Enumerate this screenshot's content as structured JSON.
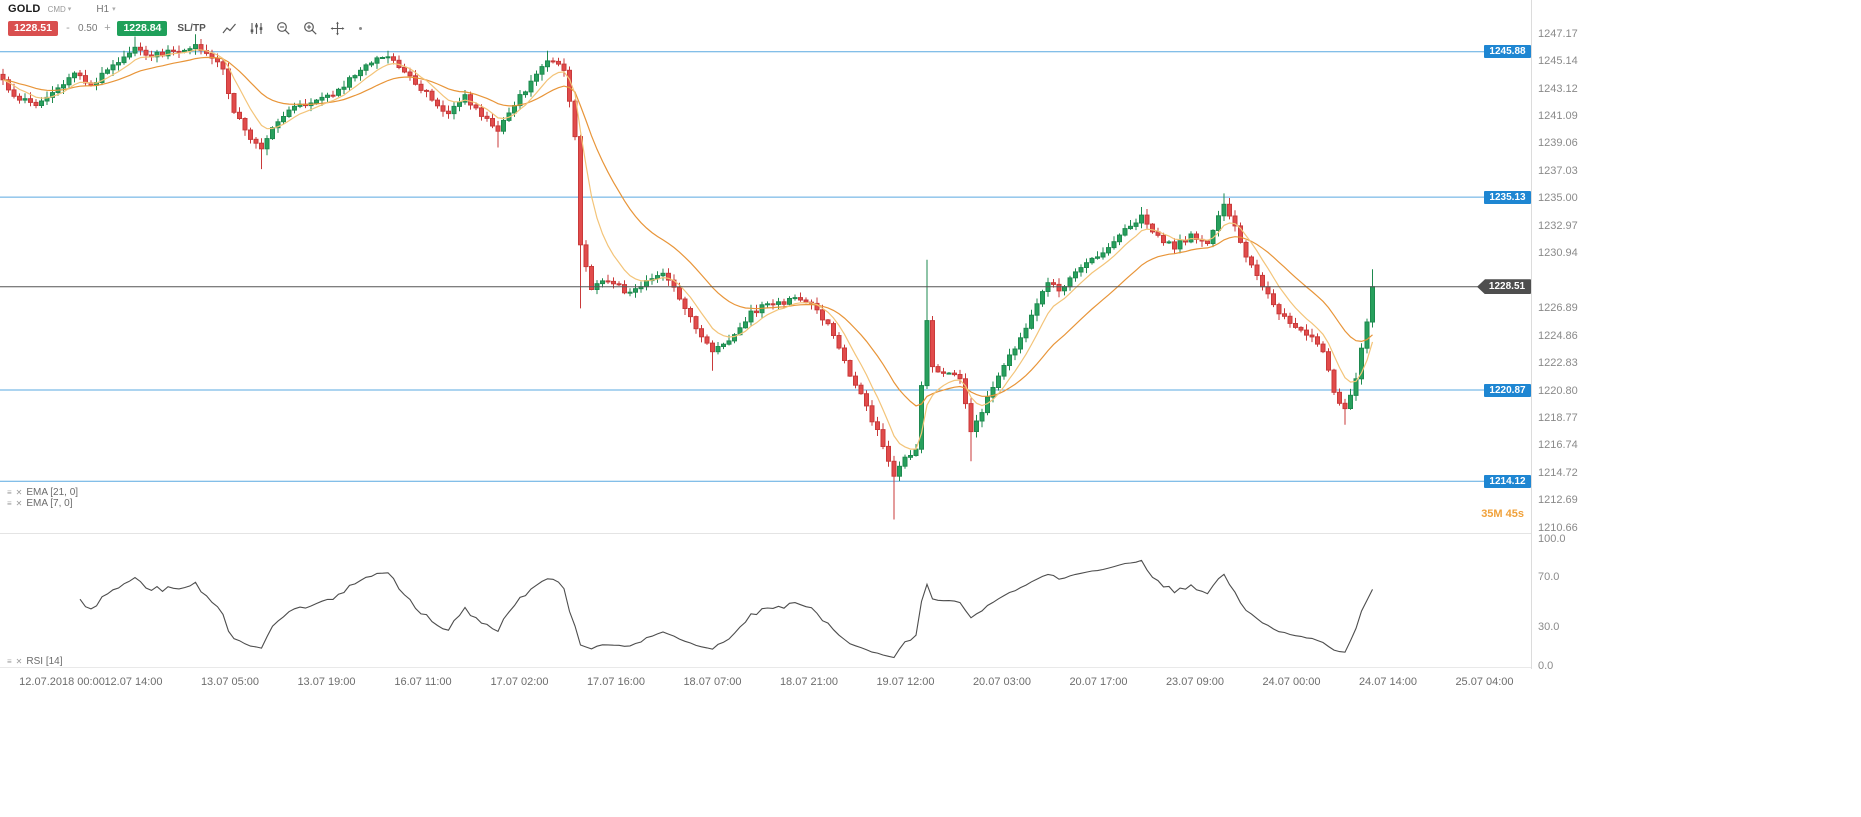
{
  "header": {
    "symbol": "GOLD",
    "instrument_type": "CMD",
    "timeframe": "H1"
  },
  "trade_bar": {
    "sell_price": "1228.51",
    "volume": "0.50",
    "minus": "-",
    "plus": "+",
    "buy_price": "1228.84",
    "sltp_label": "SL/TP"
  },
  "legend": {
    "ema_slow": "EMA [21, 0]",
    "ema_fast": "EMA [7, 0]",
    "rsi": "RSI [14]"
  },
  "countdown": "35M 45s",
  "icons": {
    "caret": "▾",
    "menu": "≡",
    "close": "✕",
    "dot": "·"
  },
  "colors": {
    "up": "#27a05d",
    "up_stroke": "#1e8a4f",
    "down": "#e14b4b",
    "down_stroke": "#c93a3a",
    "ema_slow": "#e89539",
    "ema_fast": "#f3c479",
    "level_line": "#5aa9e0",
    "level_tag_bg": "#1e86d2",
    "current_line": "#555555",
    "current_tag_bg": "#4e4e4e",
    "rsi_line": "#4d4d4d",
    "countdown": "#f0a13a",
    "sell_bg": "#d94f4f",
    "buy_bg": "#1fa05a"
  },
  "chart_data": {
    "type": "candlestick",
    "symbol": "GOLD",
    "timeframe": "H1",
    "overlays": [
      "EMA(21)",
      "EMA(7)"
    ],
    "subpanel": "RSI(14)",
    "ylim": [
      1210.3,
      1249.7
    ],
    "rsi_ylim": [
      0,
      100
    ],
    "grid": false,
    "candle_count": 250,
    "noise_seed": 7,
    "noise_amp": 0.5,
    "current_price": 1228.51,
    "levels": [
      {
        "label": "1245.88",
        "price": 1245.88,
        "type": "level"
      },
      {
        "label": "1235.13",
        "price": 1235.13,
        "type": "level"
      },
      {
        "label": "1220.87",
        "price": 1220.87,
        "type": "level"
      },
      {
        "label": "1214.12",
        "price": 1214.12,
        "type": "level"
      },
      {
        "label": "1228.51",
        "price": 1228.51,
        "type": "current"
      }
    ],
    "y_tick_labels": [
      "1247.17",
      "1245.14",
      "1243.12",
      "1241.09",
      "1239.06",
      "1237.03",
      "1235.00",
      "1232.97",
      "1230.94",
      "1226.89",
      "1224.86",
      "1222.83",
      "1220.80",
      "1218.77",
      "1216.74",
      "1214.72",
      "1212.69",
      "1210.66"
    ],
    "rsi_tick_labels": [
      "100.0",
      "70.0",
      "30.0",
      "0.0"
    ],
    "x_tick_labels": [
      "12.07.2018 00:00",
      "12.07 14:00",
      "13.07 05:00",
      "13.07 19:00",
      "16.07 11:00",
      "17.07 02:00",
      "17.07 16:00",
      "18.07 07:00",
      "18.07 21:00",
      "19.07 12:00",
      "20.07 03:00",
      "20.07 17:00",
      "23.07 09:00",
      "24.07 00:00",
      "24.07 14:00",
      "25.07 04:00"
    ],
    "close_path": [
      [
        0,
        1243.8
      ],
      [
        3,
        1242.3
      ],
      [
        6,
        1241.9
      ],
      [
        10,
        1243.2
      ],
      [
        13,
        1244.3
      ],
      [
        16,
        1243.4
      ],
      [
        20,
        1244.9
      ],
      [
        24,
        1246.2
      ],
      [
        27,
        1245.5
      ],
      [
        31,
        1245.9
      ],
      [
        35,
        1246.4
      ],
      [
        38,
        1245.4
      ],
      [
        40,
        1244.6
      ],
      [
        42,
        1241.4
      ],
      [
        45,
        1239.4
      ],
      [
        47,
        1238.7
      ],
      [
        50,
        1240.7
      ],
      [
        54,
        1242.0
      ],
      [
        58,
        1242.5
      ],
      [
        61,
        1243.1
      ],
      [
        66,
        1244.9
      ],
      [
        70,
        1245.5
      ],
      [
        74,
        1244.1
      ],
      [
        78,
        1242.3
      ],
      [
        81,
        1241.3
      ],
      [
        84,
        1242.7
      ],
      [
        87,
        1241.1
      ],
      [
        90,
        1240.0
      ],
      [
        93,
        1241.9
      ],
      [
        96,
        1243.7
      ],
      [
        99,
        1245.2
      ],
      [
        102,
        1244.5
      ],
      [
        104,
        1239.6
      ],
      [
        105,
        1231.6
      ],
      [
        107,
        1228.3
      ],
      [
        110,
        1228.9
      ],
      [
        114,
        1228.1
      ],
      [
        118,
        1229.1
      ],
      [
        120,
        1229.5
      ],
      [
        123,
        1227.6
      ],
      [
        126,
        1225.4
      ],
      [
        129,
        1223.7
      ],
      [
        132,
        1224.5
      ],
      [
        136,
        1226.7
      ],
      [
        140,
        1227.2
      ],
      [
        144,
        1227.7
      ],
      [
        148,
        1226.8
      ],
      [
        151,
        1224.9
      ],
      [
        154,
        1221.9
      ],
      [
        157,
        1219.7
      ],
      [
        160,
        1216.7
      ],
      [
        162,
        1214.5
      ],
      [
        164,
        1215.9
      ],
      [
        166,
        1216.5
      ],
      [
        168,
        1226.0
      ],
      [
        169,
        1222.6
      ],
      [
        171,
        1222.1
      ],
      [
        174,
        1221.7
      ],
      [
        176,
        1217.8
      ],
      [
        178,
        1219.2
      ],
      [
        181,
        1221.9
      ],
      [
        184,
        1223.9
      ],
      [
        187,
        1226.4
      ],
      [
        190,
        1228.8
      ],
      [
        192,
        1228.2
      ],
      [
        195,
        1229.6
      ],
      [
        198,
        1230.6
      ],
      [
        201,
        1231.4
      ],
      [
        204,
        1232.8
      ],
      [
        207,
        1233.8
      ],
      [
        210,
        1232.3
      ],
      [
        213,
        1231.3
      ],
      [
        216,
        1232.4
      ],
      [
        219,
        1231.7
      ],
      [
        222,
        1234.6
      ],
      [
        224,
        1233.0
      ],
      [
        226,
        1230.7
      ],
      [
        229,
        1228.5
      ],
      [
        232,
        1226.5
      ],
      [
        235,
        1225.5
      ],
      [
        238,
        1224.8
      ],
      [
        240,
        1223.7
      ],
      [
        242,
        1220.7
      ],
      [
        244,
        1219.5
      ],
      [
        246,
        1221.7
      ],
      [
        248,
        1225.9
      ],
      [
        249,
        1228.51
      ]
    ],
    "wick_overrides": [
      {
        "idx": 24,
        "high": 1247.0
      },
      {
        "idx": 35,
        "high": 1247.17
      },
      {
        "idx": 47,
        "low": 1237.2
      },
      {
        "idx": 90,
        "low": 1238.8
      },
      {
        "idx": 99,
        "high": 1245.95
      },
      {
        "idx": 105,
        "low": 1226.9
      },
      {
        "idx": 129,
        "low": 1222.3
      },
      {
        "idx": 162,
        "low": 1211.3
      },
      {
        "idx": 168,
        "high": 1230.5
      },
      {
        "idx": 176,
        "low": 1215.6
      },
      {
        "idx": 207,
        "high": 1234.4
      },
      {
        "idx": 222,
        "high": 1235.4
      },
      {
        "idx": 244,
        "low": 1218.3
      },
      {
        "idx": 249,
        "high": 1229.8
      }
    ]
  }
}
